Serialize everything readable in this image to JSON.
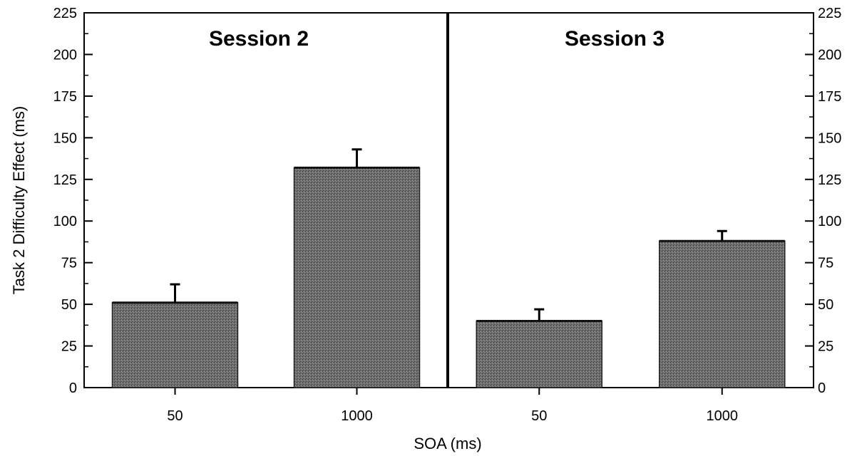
{
  "chart_data": {
    "type": "bar",
    "xlabel": "SOA (ms)",
    "ylabel": "Task 2 Difficulty Effect (ms)",
    "ylim": [
      0,
      225
    ],
    "yticks": [
      "0",
      "25",
      "50",
      "75",
      "100",
      "125",
      "150",
      "175",
      "200",
      "225"
    ],
    "grid": false,
    "legend": "none",
    "bar_color": "#6e6e6e",
    "panels": [
      {
        "title": "Session 2",
        "categories": [
          "50",
          "1000"
        ],
        "values": [
          51,
          132
        ],
        "errors": [
          11,
          11
        ]
      },
      {
        "title": "Session 3",
        "categories": [
          "50",
          "1000"
        ],
        "values": [
          40,
          88
        ],
        "errors": [
          7,
          6
        ]
      }
    ]
  }
}
